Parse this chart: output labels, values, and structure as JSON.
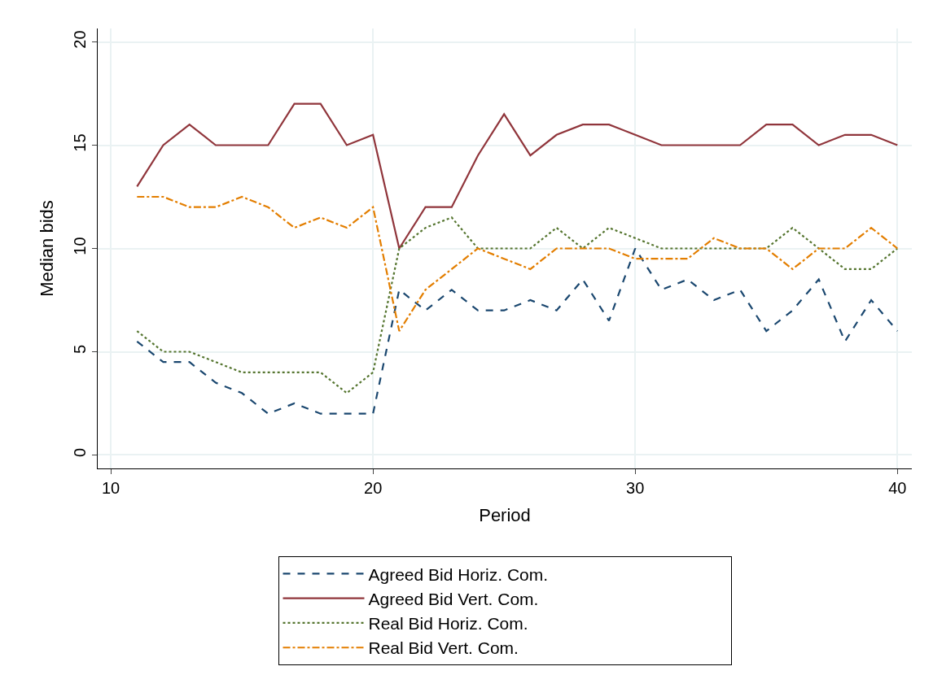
{
  "chart_data": {
    "type": "line",
    "xlabel": "Period",
    "ylabel": "Median bids",
    "x": [
      11,
      12,
      13,
      14,
      15,
      16,
      17,
      18,
      19,
      20,
      21,
      22,
      23,
      24,
      25,
      26,
      27,
      28,
      29,
      30,
      31,
      32,
      33,
      34,
      35,
      36,
      37,
      38,
      39,
      40
    ],
    "series": [
      {
        "name": "Agreed Bid Horiz. Com.",
        "color": "#1a476f",
        "line_style": "dashed",
        "values": [
          5.5,
          4.5,
          4.5,
          3.5,
          3,
          2,
          2.5,
          2,
          2,
          2,
          8,
          7,
          8,
          7,
          7,
          7.5,
          7,
          8.5,
          6.5,
          10,
          8,
          8.5,
          7.5,
          8,
          6,
          7,
          8.5,
          5.5,
          7.5,
          6
        ]
      },
      {
        "name": "Agreed Bid Vert. Com.",
        "color": "#90353b",
        "line_style": "solid",
        "values": [
          13,
          15,
          16,
          15,
          15,
          15,
          17,
          17,
          15,
          15.5,
          10,
          12,
          12,
          14.5,
          16.5,
          14.5,
          15.5,
          16,
          16,
          15.5,
          15,
          15,
          15,
          15,
          16,
          16,
          15,
          15.5,
          15.5,
          15
        ]
      },
      {
        "name": "Real Bid Horiz. Com.",
        "color": "#55752f",
        "line_style": "dotted",
        "values": [
          6,
          5,
          5,
          4.5,
          4,
          4,
          4,
          4,
          3,
          4,
          10,
          11,
          11.5,
          10,
          10,
          10,
          11,
          10,
          11,
          10.5,
          10,
          10,
          10,
          10,
          10,
          11,
          10,
          9,
          9,
          10
        ]
      },
      {
        "name": "Real Bid Vert. Com.",
        "color": "#e37e00",
        "line_style": "dashdot",
        "values": [
          12.5,
          12.5,
          12,
          12,
          12.5,
          12,
          11,
          11.5,
          11,
          12,
          6,
          8,
          9,
          10,
          9.5,
          9,
          10,
          10,
          10,
          9.5,
          9.5,
          9.5,
          10.5,
          10,
          10,
          9,
          10,
          10,
          11,
          10
        ]
      }
    ],
    "xlim": [
      9.5,
      40.55
    ],
    "ylim": [
      -0.65,
      20.65
    ],
    "xticks": [
      10,
      20,
      30,
      40
    ],
    "yticks": [
      0,
      5,
      10,
      15,
      20
    ],
    "grid": true,
    "legend": "bottom",
    "marker": "none"
  }
}
